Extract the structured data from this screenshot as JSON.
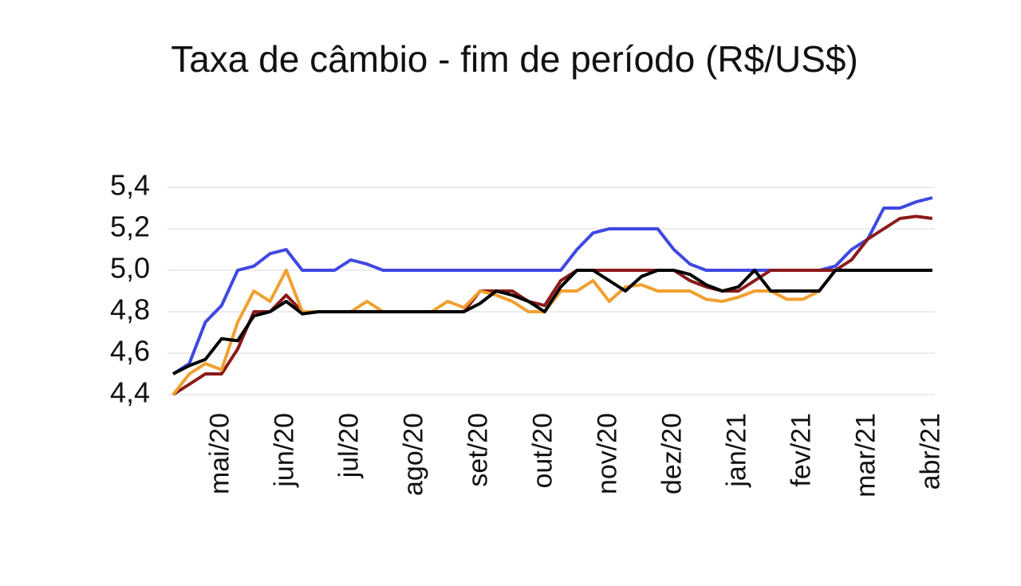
{
  "chart_data": {
    "type": "line",
    "title": "Taxa de câmbio - fim de período (R$/US$)",
    "categories": [
      null,
      null,
      null,
      "mai/20",
      null,
      null,
      null,
      "jun/20",
      null,
      null,
      null,
      "jul/20",
      null,
      null,
      null,
      "ago/20",
      null,
      null,
      null,
      "set/20",
      null,
      null,
      null,
      "out/20",
      null,
      null,
      null,
      "nov/20",
      null,
      null,
      null,
      "dez/20",
      null,
      null,
      null,
      "jan/21",
      null,
      null,
      null,
      "fev/21",
      null,
      null,
      null,
      "mar/21",
      null,
      null,
      null,
      "abr/21"
    ],
    "series": [
      {
        "color": "#3f48e0",
        "values": [
          4.5,
          4.55,
          4.75,
          4.83,
          5.0,
          5.02,
          5.08,
          5.1,
          5.0,
          5.0,
          5.0,
          5.05,
          5.03,
          5.0,
          5.0,
          5.0,
          5.0,
          5.0,
          5.0,
          5.0,
          5.0,
          5.0,
          5.0,
          5.0,
          5.0,
          5.1,
          5.18,
          5.2,
          5.2,
          5.2,
          5.2,
          5.1,
          5.03,
          5.0,
          5.0,
          5.0,
          5.0,
          5.0,
          5.0,
          5.0,
          5.0,
          5.02,
          5.1,
          5.15,
          5.3,
          5.3,
          5.33,
          5.35
        ]
      },
      {
        "color": "#8b1a1a",
        "values": [
          4.4,
          4.45,
          4.5,
          4.5,
          4.62,
          4.8,
          4.8,
          4.88,
          4.8,
          4.8,
          4.8,
          4.8,
          4.8,
          4.8,
          4.8,
          4.8,
          4.8,
          4.8,
          4.8,
          4.9,
          4.9,
          4.9,
          4.85,
          4.83,
          4.95,
          5.0,
          5.0,
          5.0,
          5.0,
          5.0,
          5.0,
          5.0,
          4.95,
          4.92,
          4.9,
          4.9,
          4.95,
          5.0,
          5.0,
          5.0,
          5.0,
          5.0,
          5.05,
          5.15,
          5.2,
          5.25,
          5.26,
          5.25
        ]
      },
      {
        "color": "#f0a030",
        "values": [
          4.4,
          4.5,
          4.55,
          4.52,
          4.75,
          4.9,
          4.85,
          5.0,
          4.8,
          4.8,
          4.8,
          4.8,
          4.85,
          4.8,
          4.8,
          4.8,
          4.8,
          4.85,
          4.82,
          4.9,
          4.88,
          4.85,
          4.8,
          4.8,
          4.9,
          4.9,
          4.95,
          4.85,
          4.92,
          4.93,
          4.9,
          4.9,
          4.9,
          4.86,
          4.85,
          4.87,
          4.9,
          4.9,
          4.86,
          4.86,
          4.9,
          5.0,
          5.0,
          5.0,
          5.0,
          5.0,
          5.0,
          5.0
        ]
      },
      {
        "color": "#000000",
        "values": [
          4.5,
          4.54,
          4.57,
          4.67,
          4.66,
          4.78,
          4.8,
          4.85,
          4.79,
          4.8,
          4.8,
          4.8,
          4.8,
          4.8,
          4.8,
          4.8,
          4.8,
          4.8,
          4.8,
          4.84,
          4.9,
          4.88,
          4.85,
          4.8,
          4.92,
          5.0,
          5.0,
          4.95,
          4.9,
          4.97,
          5.0,
          5.0,
          4.98,
          4.93,
          4.9,
          4.92,
          5.0,
          4.9,
          4.9,
          4.9,
          4.9,
          5.0,
          5.0,
          5.0,
          5.0,
          5.0,
          5.0,
          5.0
        ]
      }
    ],
    "ylim": [
      4.4,
      5.4
    ],
    "yticks": [
      {
        "value": 4.4,
        "label": "4,4"
      },
      {
        "value": 4.6,
        "label": "4,6"
      },
      {
        "value": 4.8,
        "label": "4,8"
      },
      {
        "value": 5.0,
        "label": "5,0"
      },
      {
        "value": 5.2,
        "label": "5,2"
      },
      {
        "value": 5.4,
        "label": "5,4"
      }
    ],
    "grid": true
  }
}
